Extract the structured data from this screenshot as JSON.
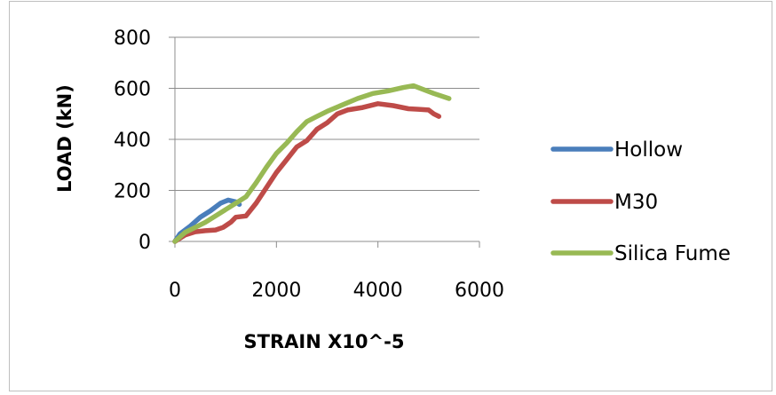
{
  "chart_data": {
    "type": "line",
    "title": "",
    "xlabel": "STRAIN X10^-5",
    "ylabel": "LOAD (kN)",
    "xlim": [
      0,
      6000
    ],
    "ylim": [
      0,
      800
    ],
    "xticks": [
      0,
      2000,
      4000,
      6000
    ],
    "yticks": [
      0,
      200,
      400,
      600,
      800
    ],
    "grid": "horizontal",
    "legend_position": "right",
    "series": [
      {
        "name": "Hollow",
        "color": "#4a7ebb",
        "points": [
          [
            0,
            0
          ],
          [
            100,
            30
          ],
          [
            300,
            60
          ],
          [
            500,
            95
          ],
          [
            700,
            120
          ],
          [
            900,
            150
          ],
          [
            1050,
            162
          ],
          [
            1200,
            155
          ],
          [
            1270,
            145
          ]
        ]
      },
      {
        "name": "M30",
        "color": "#be4b48",
        "points": [
          [
            0,
            0
          ],
          [
            200,
            25
          ],
          [
            400,
            38
          ],
          [
            600,
            42
          ],
          [
            800,
            45
          ],
          [
            950,
            55
          ],
          [
            1100,
            75
          ],
          [
            1200,
            95
          ],
          [
            1400,
            100
          ],
          [
            1600,
            150
          ],
          [
            1800,
            210
          ],
          [
            2000,
            270
          ],
          [
            2200,
            320
          ],
          [
            2400,
            370
          ],
          [
            2600,
            395
          ],
          [
            2800,
            440
          ],
          [
            3000,
            465
          ],
          [
            3200,
            500
          ],
          [
            3400,
            515
          ],
          [
            3700,
            525
          ],
          [
            4000,
            540
          ],
          [
            4300,
            532
          ],
          [
            4600,
            520
          ],
          [
            4800,
            518
          ],
          [
            5000,
            515
          ],
          [
            5100,
            500
          ],
          [
            5200,
            490
          ]
        ]
      },
      {
        "name": "Silica Fume",
        "color": "#98b954",
        "points": [
          [
            0,
            0
          ],
          [
            200,
            35
          ],
          [
            400,
            55
          ],
          [
            600,
            75
          ],
          [
            800,
            100
          ],
          [
            1000,
            125
          ],
          [
            1200,
            150
          ],
          [
            1400,
            175
          ],
          [
            1600,
            230
          ],
          [
            1800,
            290
          ],
          [
            2000,
            345
          ],
          [
            2200,
            385
          ],
          [
            2400,
            430
          ],
          [
            2600,
            470
          ],
          [
            2800,
            490
          ],
          [
            3000,
            510
          ],
          [
            3300,
            535
          ],
          [
            3600,
            560
          ],
          [
            3900,
            580
          ],
          [
            4200,
            590
          ],
          [
            4500,
            603
          ],
          [
            4700,
            610
          ],
          [
            4900,
            595
          ],
          [
            5100,
            580
          ],
          [
            5400,
            560
          ]
        ]
      }
    ]
  }
}
